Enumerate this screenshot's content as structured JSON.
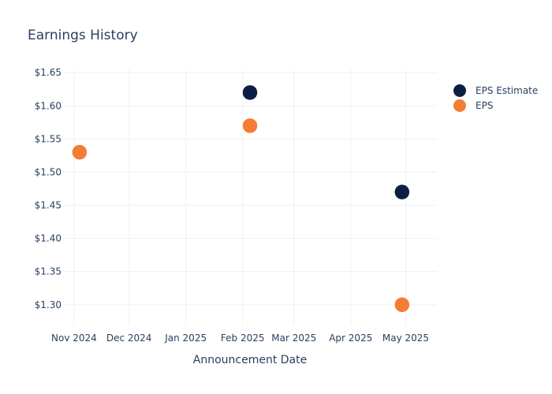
{
  "chart_data": {
    "type": "scatter",
    "title": "Earnings History",
    "xlabel": "Announcement Date",
    "ylabel": "",
    "x_axis_type": "date",
    "xlim": [
      "2024-10-26",
      "2025-05-18"
    ],
    "ylim": [
      1.27,
      1.655
    ],
    "x_ticks": [
      {
        "date": "2024-11-01",
        "label": "Nov 2024"
      },
      {
        "date": "2024-12-01",
        "label": "Dec 2024"
      },
      {
        "date": "2025-01-01",
        "label": "Jan 2025"
      },
      {
        "date": "2025-02-01",
        "label": "Feb 2025"
      },
      {
        "date": "2025-03-01",
        "label": "Mar 2025"
      },
      {
        "date": "2025-04-01",
        "label": "Apr 2025"
      },
      {
        "date": "2025-05-01",
        "label": "May 2025"
      }
    ],
    "y_ticks": [
      {
        "value": 1.3,
        "label": "$1.30"
      },
      {
        "value": 1.35,
        "label": "$1.35"
      },
      {
        "value": 1.4,
        "label": "$1.40"
      },
      {
        "value": 1.45,
        "label": "$1.45"
      },
      {
        "value": 1.5,
        "label": "$1.50"
      },
      {
        "value": 1.55,
        "label": "$1.55"
      },
      {
        "value": 1.6,
        "label": "$1.60"
      },
      {
        "value": 1.65,
        "label": "$1.65"
      }
    ],
    "grid": true,
    "legend_position": "top-right",
    "series": [
      {
        "name": "EPS Estimate",
        "color": "#0b1f44",
        "points": [
          {
            "x": "2024-11-04",
            "y": 1.53
          },
          {
            "x": "2025-02-05",
            "y": 1.62
          },
          {
            "x": "2025-04-29",
            "y": 1.47
          }
        ]
      },
      {
        "name": "EPS",
        "color": "#f47c34",
        "points": [
          {
            "x": "2024-11-04",
            "y": 1.53
          },
          {
            "x": "2025-02-05",
            "y": 1.57
          },
          {
            "x": "2025-04-29",
            "y": 1.3
          }
        ]
      }
    ]
  }
}
